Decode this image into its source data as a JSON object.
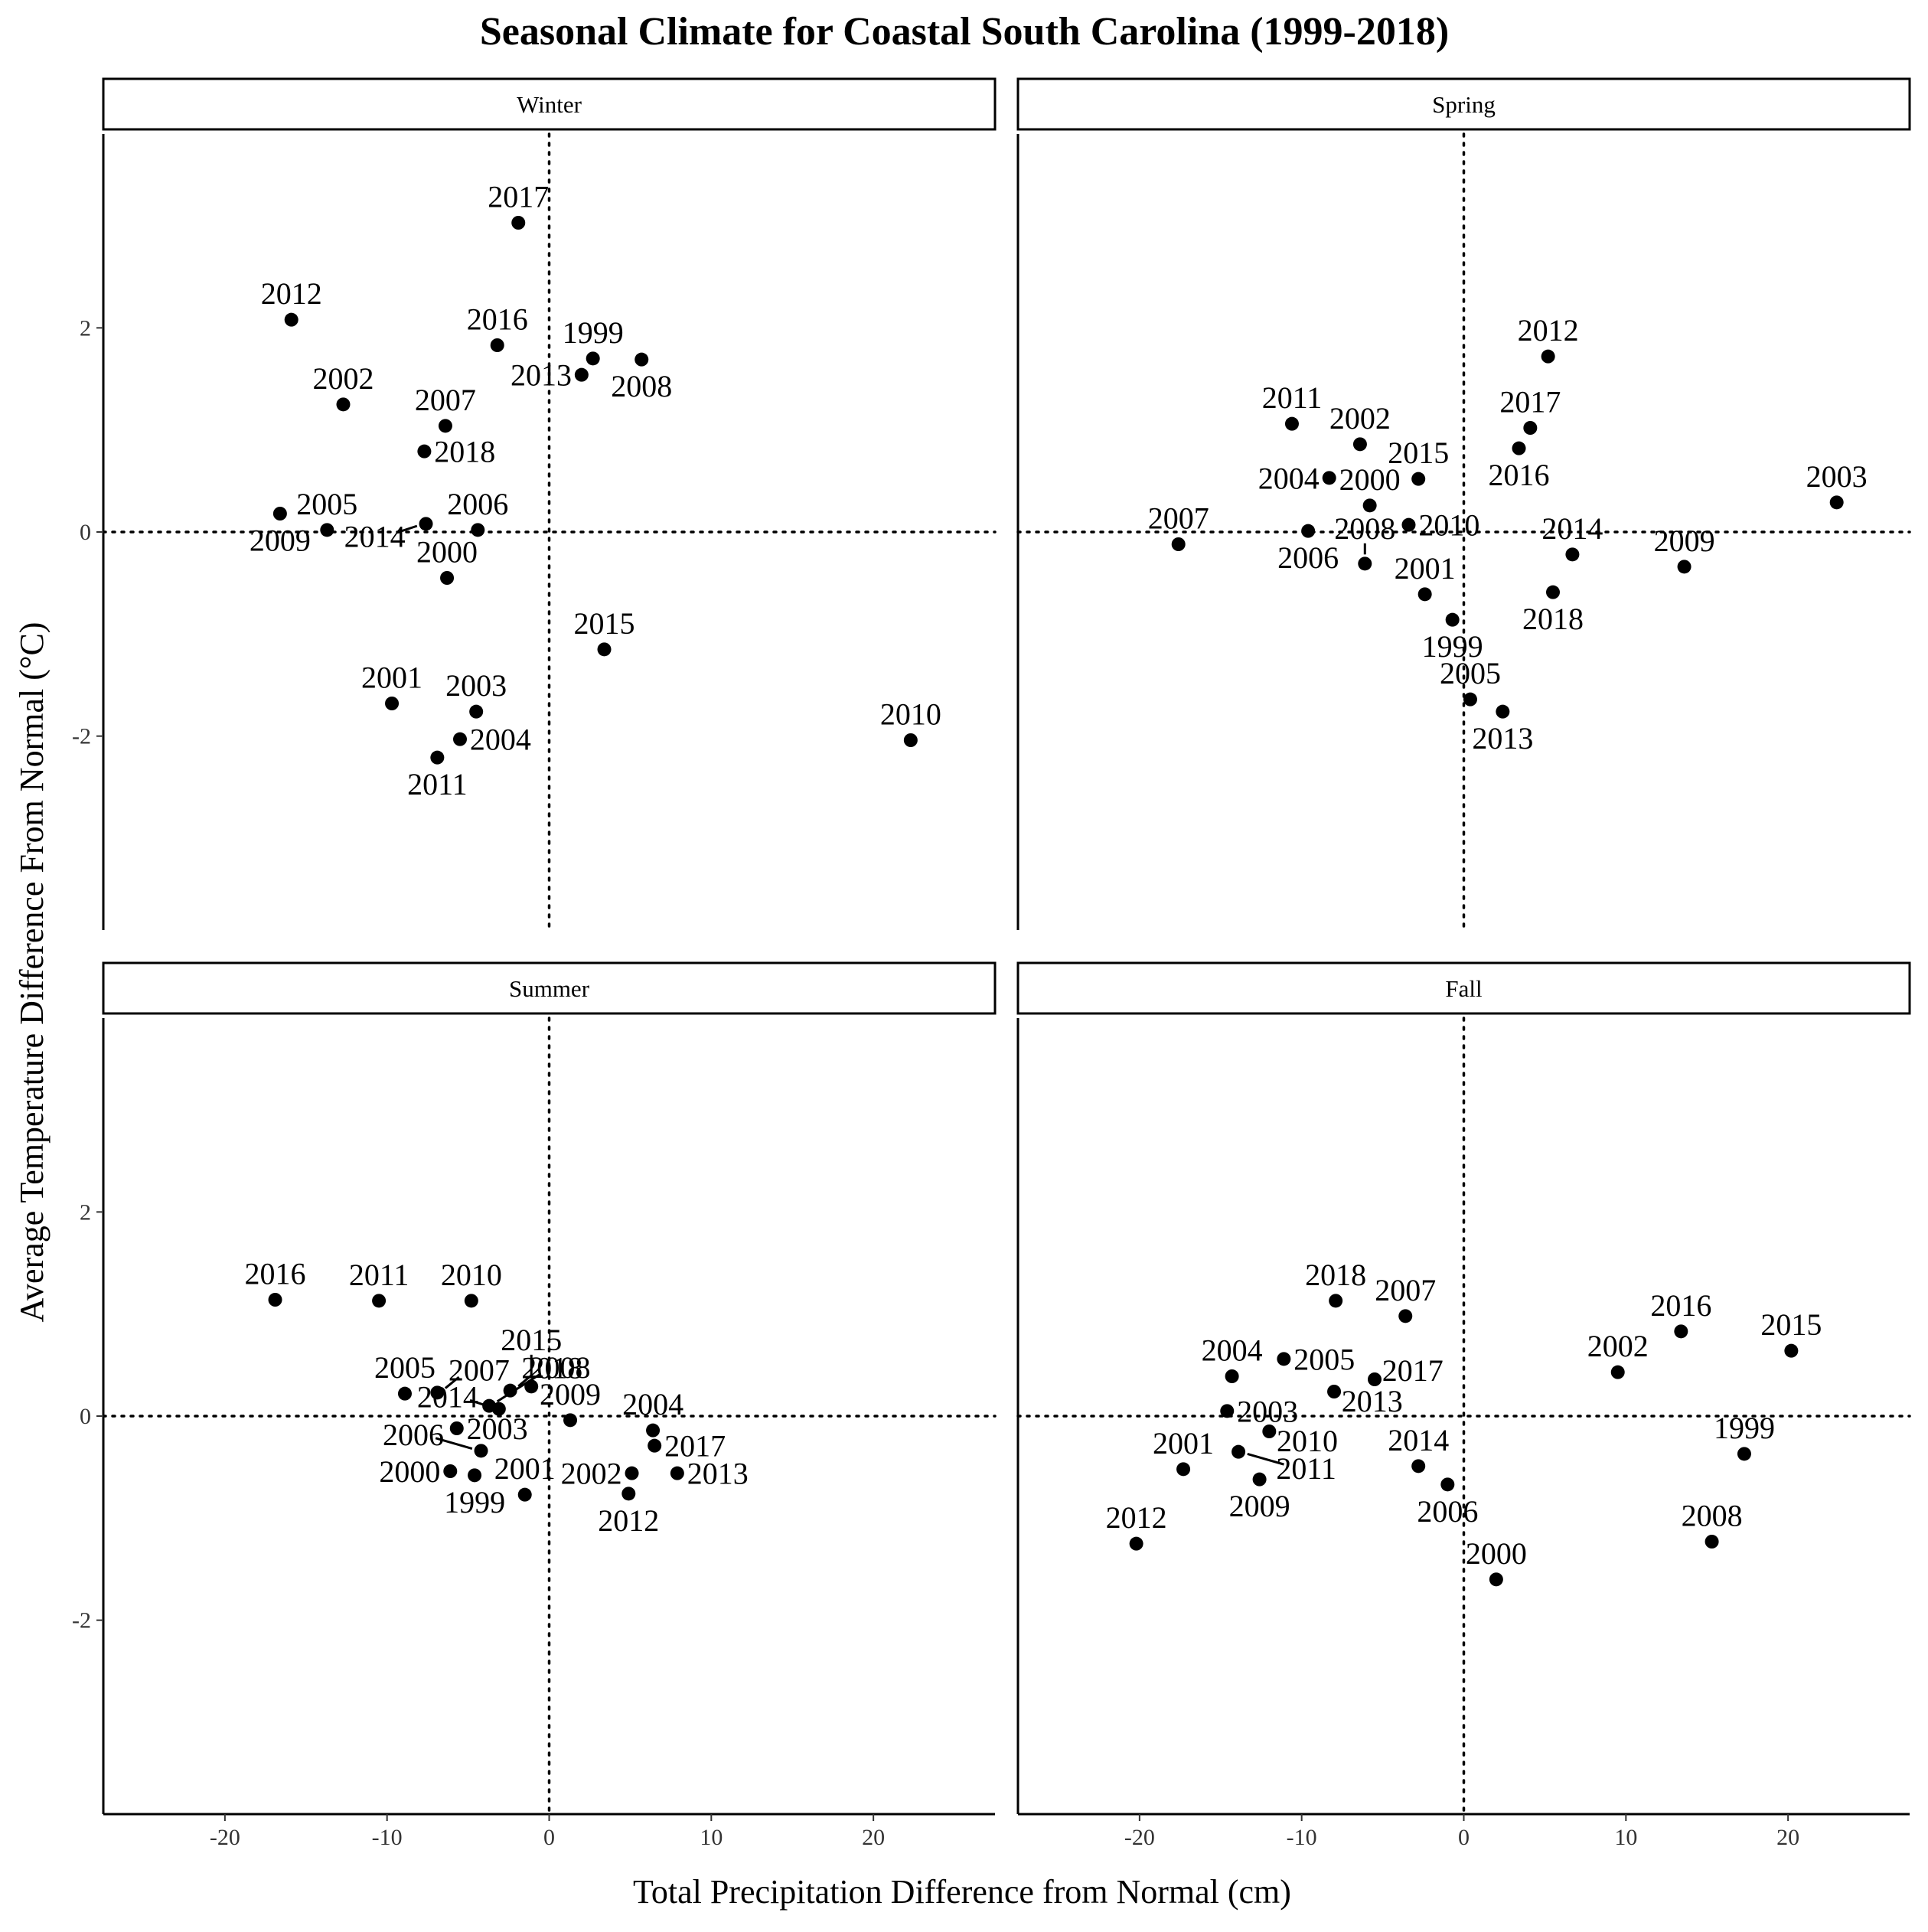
{
  "chart_data": {
    "type": "scatter",
    "title": "Seasonal Climate for Coastal South Carolina (1999-2018)",
    "xlabel": "Total Precipitation Difference from Normal (cm)",
    "ylabel": "Average Temperature Difference From Normal (°C)",
    "xlim": [
      -27.5,
      27.5
    ],
    "ylim": [
      -3.9,
      3.9
    ],
    "xticks": [
      -20,
      -10,
      0,
      10,
      20
    ],
    "yticks": [
      -2,
      0,
      2
    ],
    "reference_lines": {
      "x": 0,
      "y": 0,
      "style": "dotted"
    },
    "grid": false,
    "panels": [
      {
        "name": "Winter",
        "points": [
          {
            "label": "1999",
            "x": 2.7,
            "y": 1.7
          },
          {
            "label": "2000",
            "x": -6.3,
            "y": -0.45
          },
          {
            "label": "2001",
            "x": -9.7,
            "y": -1.68
          },
          {
            "label": "2002",
            "x": -12.7,
            "y": 1.25
          },
          {
            "label": "2003",
            "x": -4.5,
            "y": -1.76
          },
          {
            "label": "2004",
            "x": -5.5,
            "y": -2.03
          },
          {
            "label": "2005",
            "x": -13.7,
            "y": 0.02
          },
          {
            "label": "2006",
            "x": -4.4,
            "y": 0.02
          },
          {
            "label": "2007",
            "x": -6.4,
            "y": 1.04
          },
          {
            "label": "2008",
            "x": 5.7,
            "y": 1.69
          },
          {
            "label": "2009",
            "x": -16.6,
            "y": 0.18
          },
          {
            "label": "2010",
            "x": 22.3,
            "y": -2.04
          },
          {
            "label": "2011",
            "x": -6.9,
            "y": -2.21
          },
          {
            "label": "2012",
            "x": -15.9,
            "y": 2.08
          },
          {
            "label": "2013",
            "x": 2.0,
            "y": 1.54
          },
          {
            "label": "2014",
            "x": -7.6,
            "y": 0.08
          },
          {
            "label": "2015",
            "x": 3.4,
            "y": -1.15
          },
          {
            "label": "2016",
            "x": -3.2,
            "y": 1.83
          },
          {
            "label": "2017",
            "x": -1.9,
            "y": 3.03
          },
          {
            "label": "2018",
            "x": -7.7,
            "y": 0.79
          }
        ]
      },
      {
        "name": "Spring",
        "points": [
          {
            "label": "1999",
            "x": -0.7,
            "y": -0.86
          },
          {
            "label": "2000",
            "x": -5.8,
            "y": 0.26
          },
          {
            "label": "2001",
            "x": -2.4,
            "y": -0.61
          },
          {
            "label": "2002",
            "x": -6.4,
            "y": 0.86
          },
          {
            "label": "2003",
            "x": 23.0,
            "y": 0.29
          },
          {
            "label": "2004",
            "x": -8.3,
            "y": 0.53
          },
          {
            "label": "2005",
            "x": 0.4,
            "y": -1.64
          },
          {
            "label": "2006",
            "x": -9.6,
            "y": 0.01
          },
          {
            "label": "2007",
            "x": -17.6,
            "y": -0.12
          },
          {
            "label": "2008",
            "x": -6.1,
            "y": -0.31
          },
          {
            "label": "2009",
            "x": 13.6,
            "y": -0.34
          },
          {
            "label": "2010",
            "x": -3.4,
            "y": 0.07
          },
          {
            "label": "2011",
            "x": -10.6,
            "y": 1.06
          },
          {
            "label": "2012",
            "x": 5.2,
            "y": 1.72
          },
          {
            "label": "2013",
            "x": 2.4,
            "y": -1.76
          },
          {
            "label": "2014",
            "x": 6.7,
            "y": -0.22
          },
          {
            "label": "2015",
            "x": -2.8,
            "y": 0.52
          },
          {
            "label": "2016",
            "x": 3.4,
            "y": 0.82
          },
          {
            "label": "2017",
            "x": 4.1,
            "y": 1.02
          },
          {
            "label": "2018",
            "x": 5.5,
            "y": -0.59
          }
        ]
      },
      {
        "name": "Summer",
        "points": [
          {
            "label": "1999",
            "x": -4.6,
            "y": -0.58
          },
          {
            "label": "2000",
            "x": -6.1,
            "y": -0.54
          },
          {
            "label": "2001",
            "x": -1.5,
            "y": -0.77
          },
          {
            "label": "2002",
            "x": 5.1,
            "y": -0.56
          },
          {
            "label": "2003",
            "x": -5.7,
            "y": -0.12
          },
          {
            "label": "2004",
            "x": 6.4,
            "y": -0.14
          },
          {
            "label": "2005",
            "x": -8.9,
            "y": 0.22
          },
          {
            "label": "2006",
            "x": -4.2,
            "y": -0.34
          },
          {
            "label": "2007",
            "x": -6.9,
            "y": 0.23
          },
          {
            "label": "2008",
            "x": -3.7,
            "y": 0.1
          },
          {
            "label": "2009",
            "x": 1.3,
            "y": -0.04
          },
          {
            "label": "2010",
            "x": -4.8,
            "y": 1.13
          },
          {
            "label": "2011",
            "x": -10.5,
            "y": 1.13
          },
          {
            "label": "2012",
            "x": 4.9,
            "y": -0.76
          },
          {
            "label": "2013",
            "x": 7.9,
            "y": -0.56
          },
          {
            "label": "2014",
            "x": -3.1,
            "y": 0.07
          },
          {
            "label": "2015",
            "x": -1.1,
            "y": 0.29
          },
          {
            "label": "2016",
            "x": -16.9,
            "y": 1.14
          },
          {
            "label": "2017",
            "x": 6.5,
            "y": -0.29
          },
          {
            "label": "2018",
            "x": -2.4,
            "y": 0.25
          }
        ]
      },
      {
        "name": "Fall",
        "points": [
          {
            "label": "1999",
            "x": 17.3,
            "y": -0.37
          },
          {
            "label": "2000",
            "x": 2.0,
            "y": -1.6
          },
          {
            "label": "2001",
            "x": -17.3,
            "y": -0.52
          },
          {
            "label": "2002",
            "x": 9.5,
            "y": 0.43
          },
          {
            "label": "2003",
            "x": -14.6,
            "y": 0.05
          },
          {
            "label": "2004",
            "x": -14.3,
            "y": 0.39
          },
          {
            "label": "2005",
            "x": -11.1,
            "y": 0.56
          },
          {
            "label": "2006",
            "x": -1.0,
            "y": -0.67
          },
          {
            "label": "2007",
            "x": -3.6,
            "y": 0.98
          },
          {
            "label": "2008",
            "x": 15.3,
            "y": -1.23
          },
          {
            "label": "2009",
            "x": -12.6,
            "y": -0.62
          },
          {
            "label": "2010",
            "x": -12.0,
            "y": -0.15
          },
          {
            "label": "2011",
            "x": -13.9,
            "y": -0.35
          },
          {
            "label": "2012",
            "x": -20.2,
            "y": -1.25
          },
          {
            "label": "2013",
            "x": -8.0,
            "y": 0.24
          },
          {
            "label": "2014",
            "x": -2.8,
            "y": -0.49
          },
          {
            "label": "2015",
            "x": 20.2,
            "y": 0.64
          },
          {
            "label": "2016",
            "x": 13.4,
            "y": 0.83
          },
          {
            "label": "2017",
            "x": -5.5,
            "y": 0.36
          },
          {
            "label": "2018",
            "x": -7.9,
            "y": 1.13
          }
        ]
      }
    ]
  }
}
